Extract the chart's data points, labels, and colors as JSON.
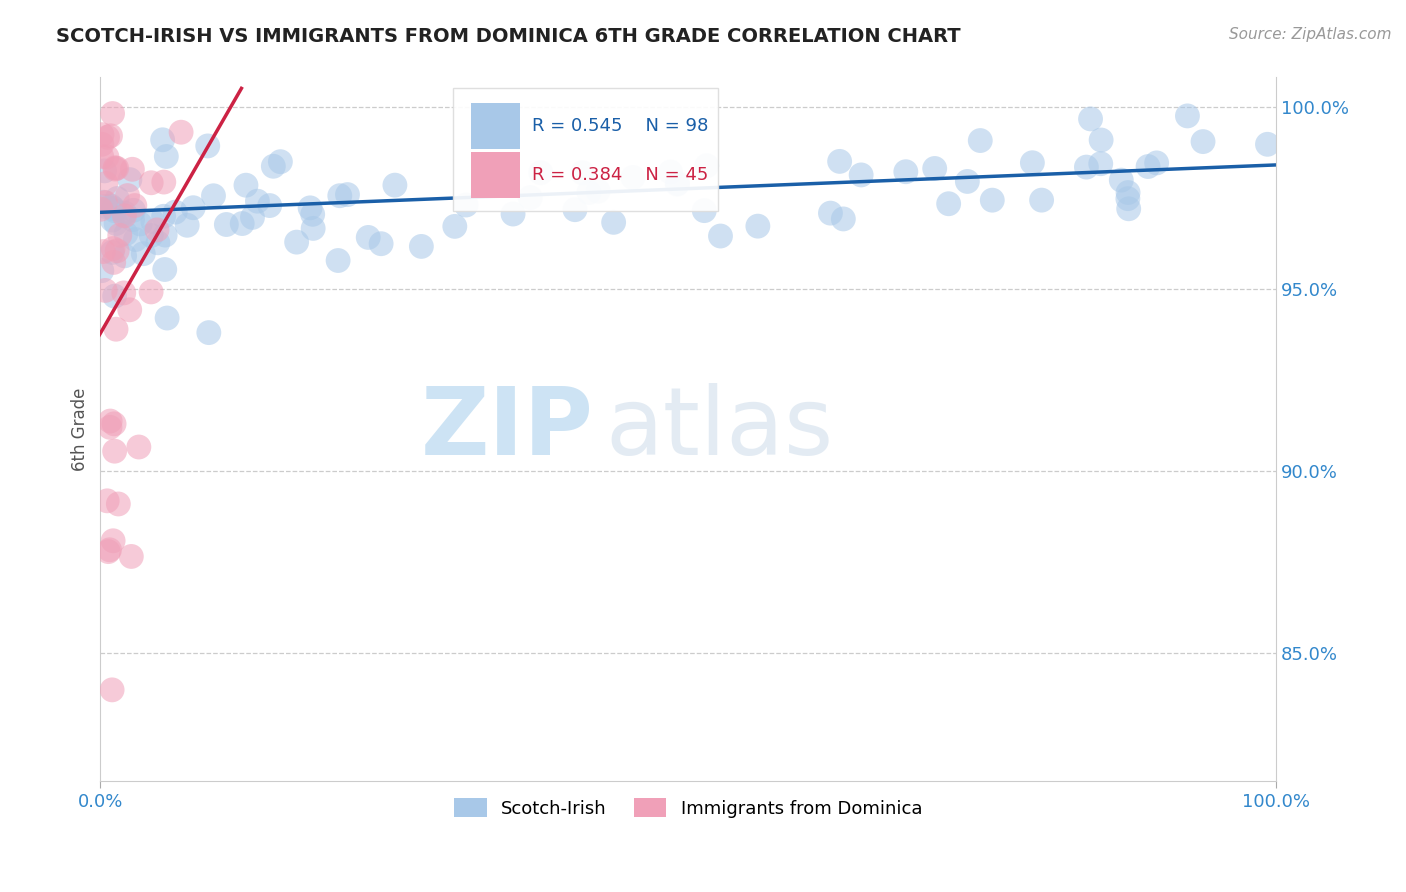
{
  "title": "SCOTCH-IRISH VS IMMIGRANTS FROM DOMINICA 6TH GRADE CORRELATION CHART",
  "source_text": "Source: ZipAtlas.com",
  "ylabel": "6th Grade",
  "xlim": [
    0.0,
    1.0
  ],
  "ylim": [
    0.815,
    1.008
  ],
  "yticks": [
    0.85,
    0.9,
    0.95,
    1.0
  ],
  "ytick_labels": [
    "85.0%",
    "90.0%",
    "95.0%",
    "100.0%"
  ],
  "background_color": "#ffffff",
  "grid_color": "#cccccc",
  "blue_color": "#a8c8e8",
  "blue_line_color": "#1a5fa8",
  "pink_color": "#f0a0b8",
  "pink_line_color": "#cc2244",
  "legend_r_blue": "R = 0.545",
  "legend_n_blue": "N = 98",
  "legend_r_pink": "R = 0.384",
  "legend_n_pink": "N = 45",
  "legend_label_blue": "Scotch-Irish",
  "legend_label_pink": "Immigrants from Dominica",
  "watermark_zip": "ZIP",
  "watermark_atlas": "atlas",
  "blue_r": 0.545,
  "blue_n": 98,
  "pink_r": 0.384,
  "pink_n": 45
}
